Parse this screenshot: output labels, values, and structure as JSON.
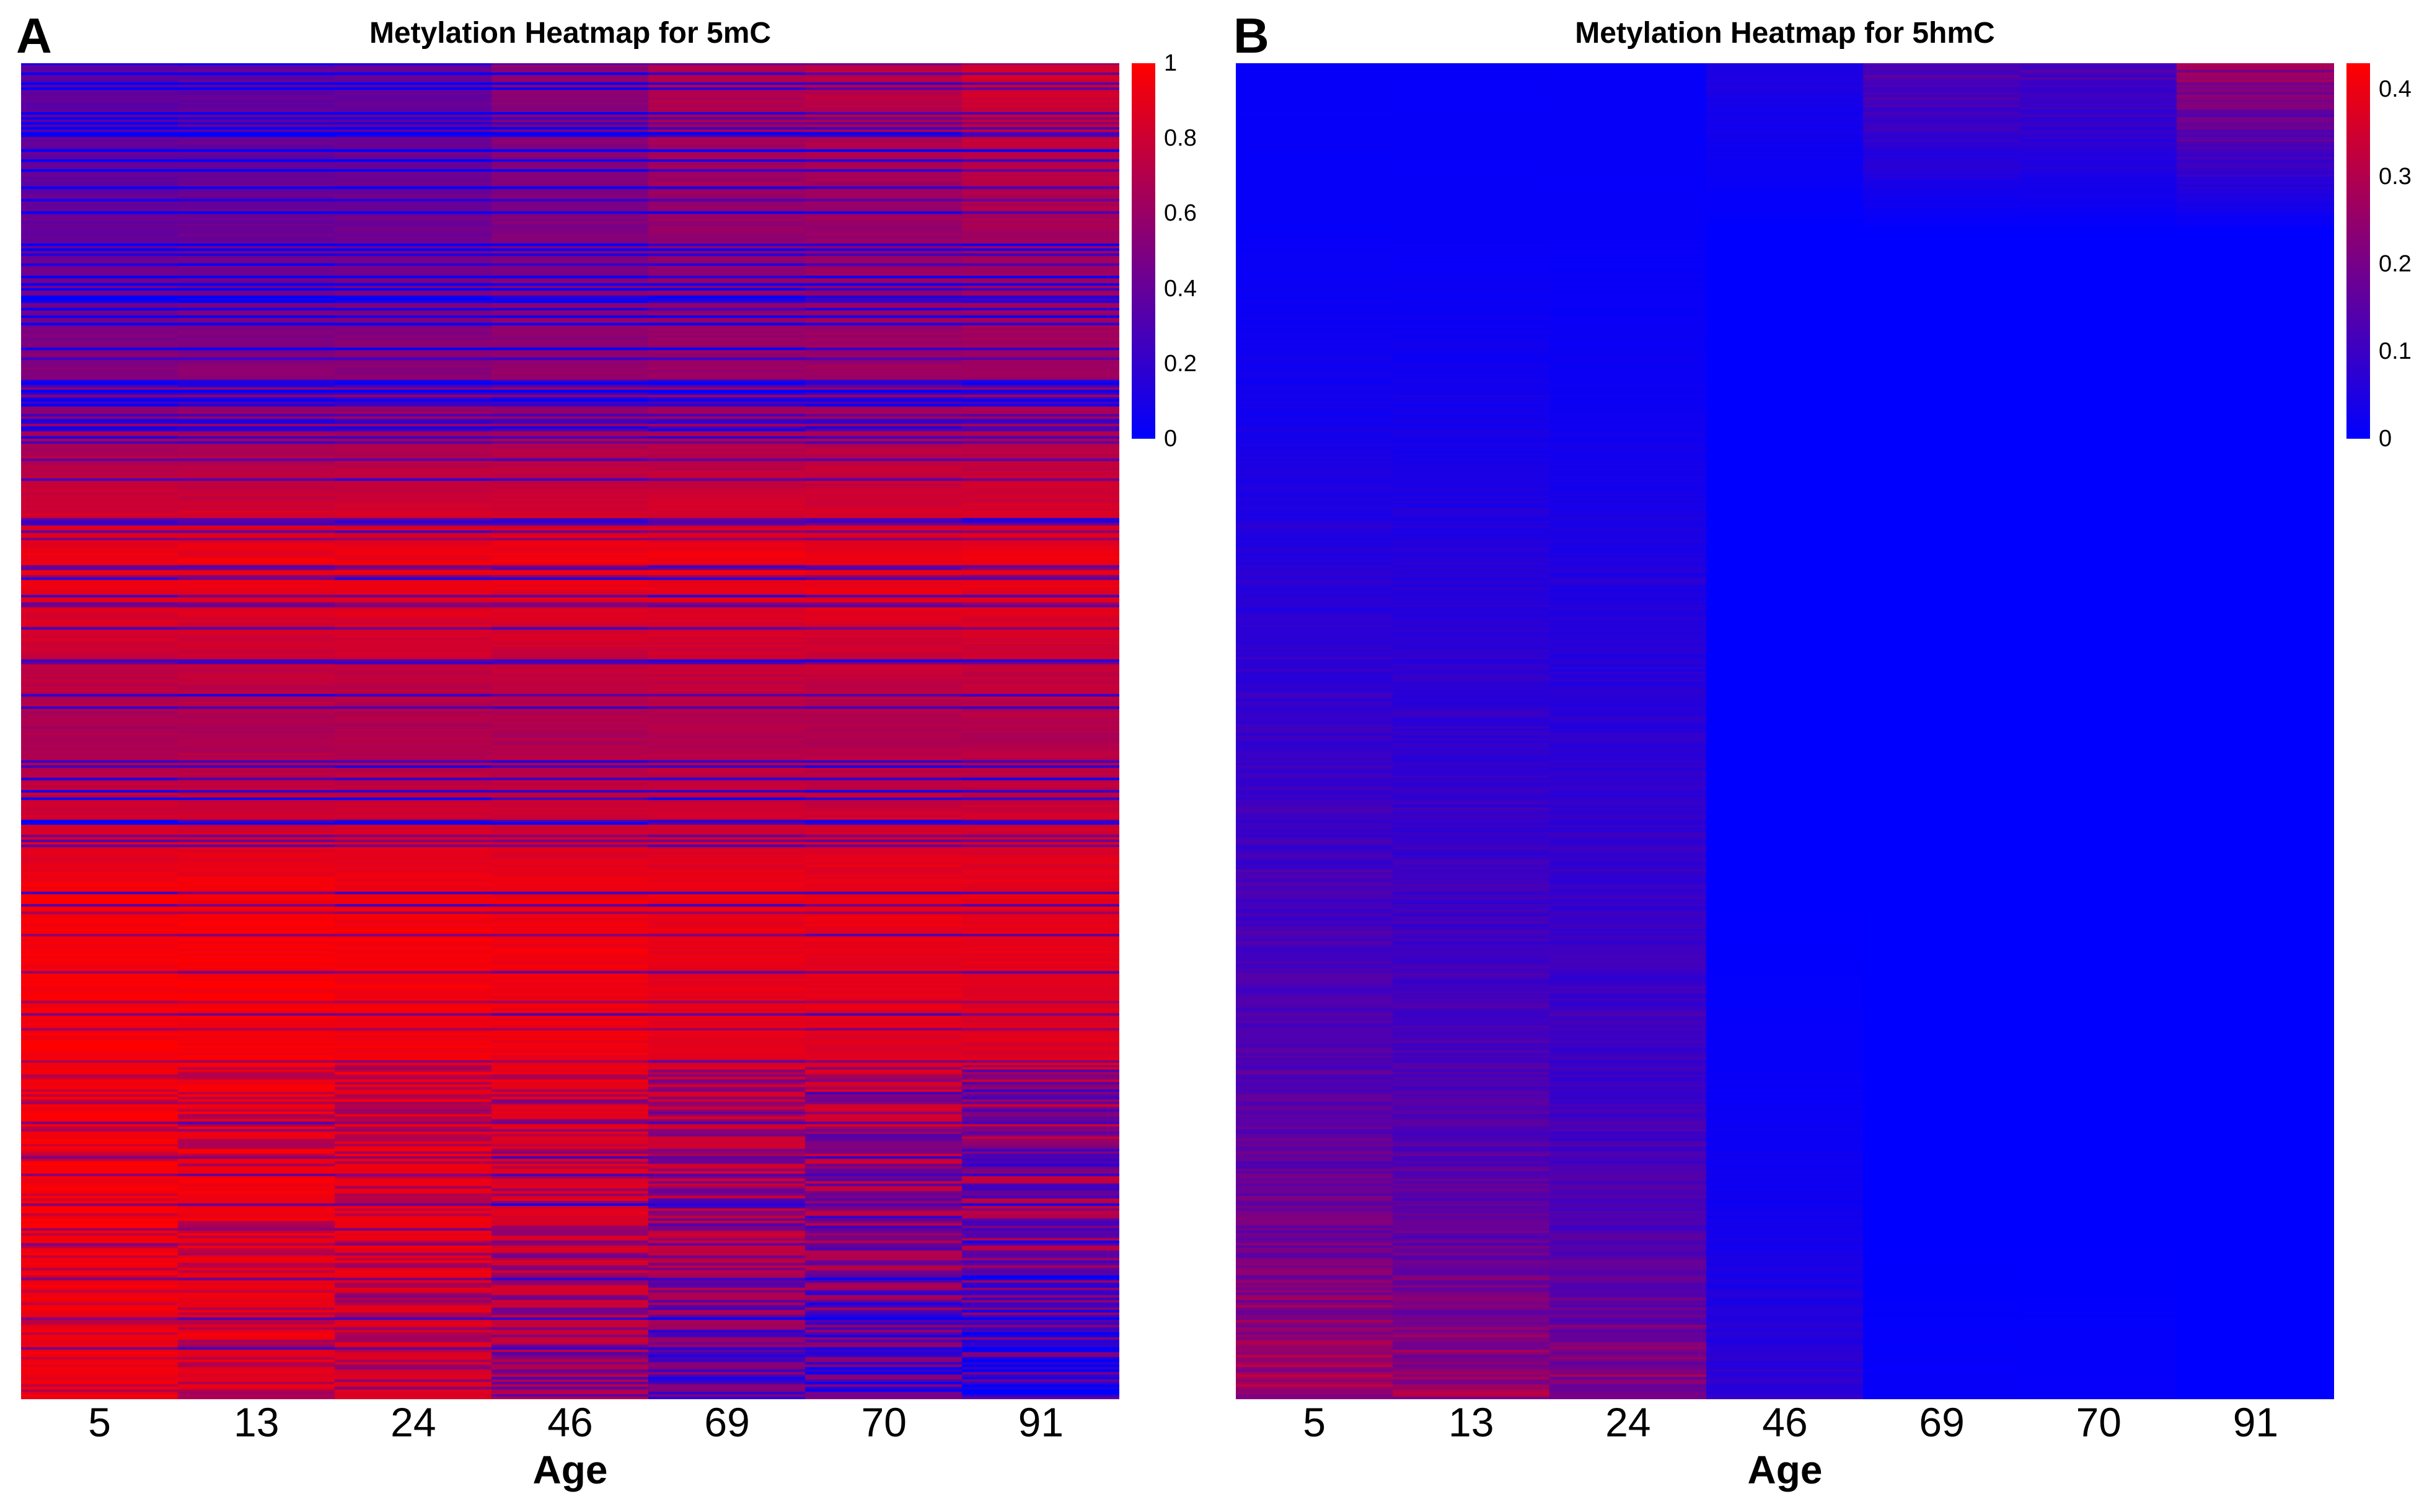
{
  "chart_data": [
    {
      "panel": "A",
      "type": "heatmap",
      "title": "Metylation Heatmap for 5mC",
      "xlabel": "Age",
      "ylabel": "",
      "categories": [
        "5",
        "13",
        "24",
        "46",
        "69",
        "70",
        "91"
      ],
      "colorscale": {
        "low_color": "#0000ff",
        "high_color": "#ff0000",
        "range": [
          0,
          1
        ],
        "ticks": [
          "0",
          "0.2",
          "0.4",
          "0.6",
          "0.8",
          "1"
        ]
      },
      "column_mean_profile": {
        "note": "approximate mean value per age column along row-order (top to bottom)",
        "5": [
          0.35,
          0.4,
          0.55,
          0.95,
          0.65,
          0.97,
          0.97,
          0.96,
          0.92
        ],
        "13": [
          0.38,
          0.42,
          0.55,
          0.95,
          0.66,
          0.97,
          0.96,
          0.95,
          0.9
        ],
        "24": [
          0.4,
          0.44,
          0.56,
          0.95,
          0.67,
          0.96,
          0.95,
          0.93,
          0.85
        ],
        "46": [
          0.55,
          0.5,
          0.58,
          0.95,
          0.67,
          0.95,
          0.92,
          0.86,
          0.7
        ],
        "69": [
          0.72,
          0.58,
          0.6,
          0.95,
          0.68,
          0.93,
          0.88,
          0.78,
          0.5
        ],
        "70": [
          0.75,
          0.6,
          0.61,
          0.95,
          0.68,
          0.93,
          0.87,
          0.76,
          0.48
        ],
        "91": [
          0.85,
          0.65,
          0.62,
          0.95,
          0.68,
          0.92,
          0.85,
          0.72,
          0.4
        ]
      }
    },
    {
      "panel": "B",
      "type": "heatmap",
      "title": "Metylation Heatmap for 5hmC",
      "xlabel": "Age",
      "ylabel": "",
      "categories": [
        "5",
        "13",
        "24",
        "46",
        "69",
        "70",
        "91"
      ],
      "colorscale": {
        "low_color": "#0000ff",
        "high_color": "#ff0000",
        "range": [
          0,
          0.43
        ],
        "ticks": [
          "0",
          "0.1",
          "0.2",
          "0.3",
          "0.4"
        ]
      },
      "column_mean_profile": {
        "note": "approximate mean value per age column along row-order (top to bottom)",
        "5": [
          0.01,
          0.01,
          0.03,
          0.06,
          0.09,
          0.11,
          0.14,
          0.18,
          0.28
        ],
        "13": [
          0.01,
          0.01,
          0.03,
          0.06,
          0.08,
          0.1,
          0.12,
          0.16,
          0.26
        ],
        "24": [
          0.01,
          0.01,
          0.02,
          0.05,
          0.07,
          0.09,
          0.1,
          0.13,
          0.22
        ],
        "46": [
          0.05,
          0.0,
          0.0,
          0.0,
          0.0,
          0.0,
          0.01,
          0.03,
          0.08
        ],
        "69": [
          0.15,
          0.0,
          0.0,
          0.0,
          0.0,
          0.0,
          0.0,
          0.0,
          0.01
        ],
        "70": [
          0.13,
          0.0,
          0.0,
          0.0,
          0.0,
          0.0,
          0.0,
          0.0,
          0.01
        ],
        "91": [
          0.25,
          0.0,
          0.0,
          0.0,
          0.0,
          0.0,
          0.0,
          0.0,
          0.0
        ]
      }
    }
  ]
}
